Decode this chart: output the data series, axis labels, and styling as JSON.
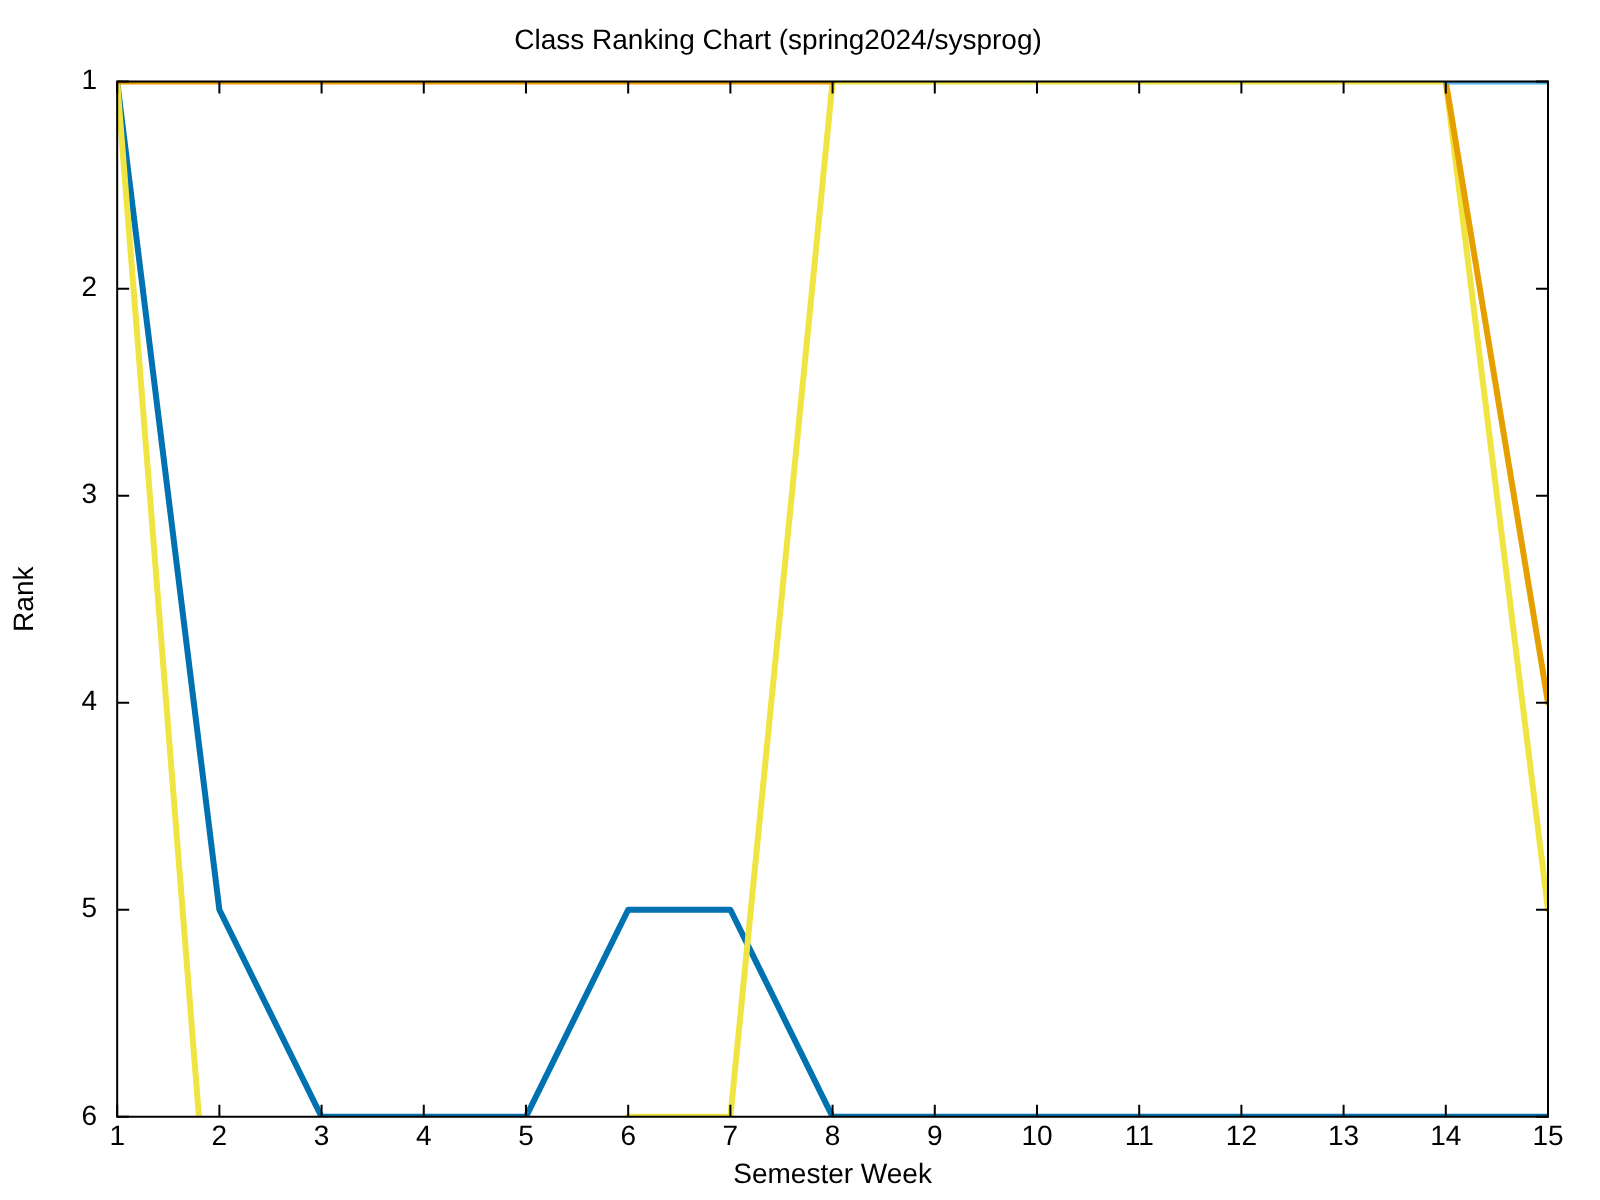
{
  "chart_data": {
    "type": "line",
    "title": "Class Ranking Chart (spring2024/sysprog)",
    "xlabel": "Semester Week",
    "ylabel": "Rank",
    "x": [
      1,
      2,
      3,
      4,
      5,
      6,
      7,
      8,
      9,
      10,
      11,
      12,
      13,
      14,
      15
    ],
    "series": [
      {
        "color": "#56b4e9",
        "values": [
          null,
          null,
          null,
          null,
          null,
          null,
          null,
          null,
          null,
          null,
          null,
          null,
          null,
          1,
          1
        ]
      },
      {
        "color": "#e69f00",
        "values": [
          1,
          1,
          1,
          1,
          1,
          1,
          1,
          1,
          null,
          null,
          null,
          null,
          null,
          1,
          4
        ]
      },
      {
        "color": "#f0e442",
        "x": [
          1,
          1.8,
          3,
          6,
          7,
          8,
          9,
          10,
          11,
          12,
          13,
          14,
          15
        ],
        "values": [
          1,
          6,
          null,
          6,
          6,
          1,
          1,
          1,
          1,
          1,
          1,
          1,
          5
        ]
      },
      {
        "color": "#0072b2",
        "values": [
          1,
          5,
          6,
          6,
          6,
          5,
          5,
          6,
          6,
          6,
          6,
          6,
          6,
          6,
          6
        ]
      }
    ],
    "xlim": [
      1,
      15
    ],
    "xticks": [
      1,
      2,
      3,
      4,
      5,
      6,
      7,
      8,
      9,
      10,
      11,
      12,
      13,
      14,
      15
    ],
    "ylim": [
      6,
      1
    ],
    "yticks": [
      1,
      2,
      3,
      4,
      5,
      6
    ],
    "grid": false,
    "legend": false,
    "marker": "none",
    "line_style": "solid"
  }
}
